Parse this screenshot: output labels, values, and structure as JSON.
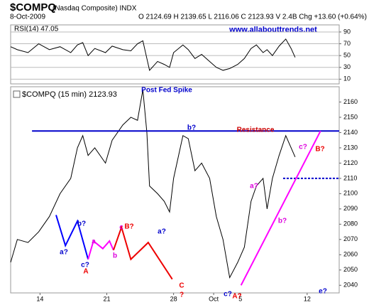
{
  "header": {
    "symbol": "$COMPQ",
    "name": "(Nasdaq Composite) INDX",
    "date": "8-Oct-2009",
    "quote": "O 2124.69 H 2139.65 L 2116.06 C 2123.93 V 2.4B Chg +13.60 (+0.64%)"
  },
  "chart_data": [
    {
      "type": "line",
      "label": "RSI(14) 47.05",
      "watermark": "www.allabouttrends.net",
      "color": "#000000",
      "x": [
        -2.2,
        -1.7,
        -0.9,
        -0.1,
        0.7,
        1.5,
        2.3,
        2.8,
        3.2,
        3.6,
        4.1,
        4.9,
        5.4,
        6.2,
        6.8,
        7.3,
        7.7,
        8.0,
        8.2,
        8.8,
        9.3,
        9.7,
        10.0,
        10.7,
        11.1,
        11.6,
        12.1,
        12.7,
        13.2,
        13.7,
        14.2,
        14.8,
        15.3,
        15.8,
        16.2,
        16.7,
        17.0,
        17.4,
        17.9,
        18.4,
        18.8,
        19.1
      ],
      "values": [
        65,
        60,
        55,
        70,
        60,
        65,
        55,
        68,
        72,
        50,
        62,
        55,
        66,
        60,
        58,
        70,
        75,
        45,
        25,
        40,
        35,
        30,
        55,
        68,
        60,
        45,
        52,
        40,
        30,
        25,
        28,
        35,
        45,
        62,
        68,
        55,
        60,
        50,
        66,
        78,
        62,
        47
      ],
      "xlim": [
        -2.2,
        22.4
      ],
      "ylim": [
        2,
        102
      ],
      "yticks": [
        10,
        30,
        50,
        70,
        90
      ],
      "grid": true
    },
    {
      "type": "line",
      "title": "$COMPQ (15 min) 2123.93",
      "color": "#000000",
      "x": [
        -2.2,
        -1.7,
        -0.9,
        -0.1,
        0.7,
        1.5,
        2.3,
        2.8,
        3.2,
        3.6,
        4.1,
        4.9,
        5.4,
        6.2,
        6.8,
        7.3,
        7.7,
        8.0,
        8.2,
        8.8,
        9.3,
        9.7,
        10.0,
        10.7,
        11.1,
        11.6,
        12.1,
        12.7,
        13.2,
        13.7,
        14.2,
        14.8,
        15.3,
        15.8,
        16.2,
        16.7,
        17.0,
        17.4,
        17.9,
        18.4,
        18.8,
        19.1
      ],
      "values": [
        2055,
        2070,
        2068,
        2075,
        2085,
        2100,
        2110,
        2130,
        2138,
        2125,
        2130,
        2120,
        2135,
        2145,
        2150,
        2148,
        2168,
        2140,
        2105,
        2100,
        2095,
        2088,
        2110,
        2138,
        2136,
        2115,
        2120,
        2110,
        2085,
        2070,
        2045,
        2055,
        2065,
        2095,
        2105,
        2110,
        2090,
        2110,
        2125,
        2138,
        2130,
        2124
      ],
      "xlim": [
        -2.2,
        22.4
      ],
      "xticks": [
        {
          "value": 0,
          "label": "14"
        },
        {
          "value": 5,
          "label": "21"
        },
        {
          "value": 10,
          "label": "28"
        },
        {
          "value": 13,
          "label": "Oct"
        },
        {
          "value": 15,
          "label": "5"
        },
        {
          "value": 20,
          "label": "12"
        }
      ],
      "ylim": [
        2035,
        2170
      ],
      "yticks": [
        2040,
        2050,
        2060,
        2070,
        2080,
        2090,
        2100,
        2110,
        2120,
        2130,
        2140,
        2150,
        2160
      ],
      "overlays": [
        {
          "color": "#0000cc",
          "x": [
            -0.6,
            22.4
          ],
          "y": [
            2141,
            2141
          ]
        },
        {
          "color": "#0000cc",
          "dashed": true,
          "x": [
            18.2,
            22.4
          ],
          "y": [
            2110,
            2110
          ]
        },
        {
          "color": "#0000ff",
          "x": [
            1.2,
            1.9,
            2.8,
            3.6
          ],
          "y": [
            2086,
            2066,
            2082,
            2057
          ]
        },
        {
          "color": "#ff00ff",
          "x": [
            3.6,
            4.0,
            4.7,
            5.2,
            5.5
          ],
          "y": [
            2057,
            2069,
            2064,
            2069,
            2063
          ]
        },
        {
          "color": "#ee0000",
          "x": [
            5.5,
            6.1,
            6.8,
            8.1,
            9.9
          ],
          "y": [
            2063,
            2078,
            2057,
            2068,
            2044
          ]
        },
        {
          "color": "#ff00ff",
          "x": [
            15.05,
            21.0
          ],
          "y": [
            2040,
            2141
          ]
        }
      ],
      "annotations": [
        {
          "text": "Post Fed Spike",
          "color": "#0000cc"
        },
        {
          "text": "b?",
          "color": "#0000cc"
        },
        {
          "text": "Resistance",
          "color": "#cc0000"
        },
        {
          "text": "a?",
          "color": "#0000cc"
        },
        {
          "text": "b?",
          "color": "#0000cc"
        },
        {
          "text": "a?",
          "color": "#0000cc"
        },
        {
          "text": "c?",
          "color": "#0000cc"
        },
        {
          "text": "A",
          "color": "#ee0000"
        },
        {
          "text": "a",
          "color": "#dd00dd"
        },
        {
          "text": "b",
          "color": "#dd00dd"
        },
        {
          "text": "c",
          "color": "#dd00dd"
        },
        {
          "text": "B?",
          "color": "#ee0000"
        },
        {
          "text": "C",
          "color": "#ee0000"
        },
        {
          "text": "?",
          "color": "#ee0000"
        },
        {
          "text": "a?",
          "color": "#dd00dd"
        },
        {
          "text": "b?",
          "color": "#dd00dd"
        },
        {
          "text": "c?",
          "color": "#dd00dd"
        },
        {
          "text": "B?",
          "color": "#ee0000"
        },
        {
          "text": "c?",
          "color": "#0000cc"
        },
        {
          "text": "A?",
          "color": "#ee0000"
        },
        {
          "text": "e?",
          "color": "#0000cc"
        }
      ]
    }
  ]
}
